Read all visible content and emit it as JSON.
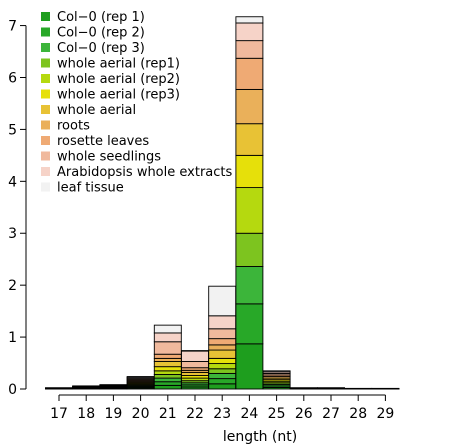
{
  "chart_data": {
    "type": "bar",
    "stacked": true,
    "title": "",
    "xlabel": "length (nt)",
    "ylabel": "",
    "ylim": [
      0,
      7.3
    ],
    "yticks": [
      0,
      1,
      2,
      3,
      4,
      5,
      6,
      7
    ],
    "categories": [
      "17",
      "18",
      "19",
      "20",
      "21",
      "22",
      "23",
      "24",
      "25",
      "26",
      "27",
      "28",
      "29"
    ],
    "grid": false,
    "legend": "top-left",
    "series": [
      {
        "name": "Col−0 (rep 1)",
        "color": "#1e9e1e",
        "values": [
          0.002,
          0.005,
          0.007,
          0.02,
          0.07,
          0.04,
          0.1,
          0.87,
          0.03,
          0.002,
          0.002,
          0.001,
          0.001
        ]
      },
      {
        "name": "Col−0 (rep 2)",
        "color": "#28a828",
        "values": [
          0.002,
          0.005,
          0.007,
          0.02,
          0.07,
          0.04,
          0.1,
          0.77,
          0.03,
          0.002,
          0.002,
          0.001,
          0.001
        ]
      },
      {
        "name": "Col−0 (rep 3)",
        "color": "#3cb53a",
        "values": [
          0.002,
          0.005,
          0.007,
          0.02,
          0.07,
          0.04,
          0.1,
          0.72,
          0.03,
          0.002,
          0.002,
          0.001,
          0.001
        ]
      },
      {
        "name": "whole aerial (rep1)",
        "color": "#7dc41f",
        "values": [
          0.002,
          0.005,
          0.007,
          0.02,
          0.07,
          0.04,
          0.09,
          0.64,
          0.03,
          0.002,
          0.002,
          0.001,
          0.001
        ]
      },
      {
        "name": "whole aerial (rep2)",
        "color": "#b5d90f",
        "values": [
          0.002,
          0.005,
          0.007,
          0.02,
          0.07,
          0.05,
          0.1,
          0.88,
          0.03,
          0.002,
          0.002,
          0.001,
          0.001
        ]
      },
      {
        "name": "whole aerial (rep3)",
        "color": "#e6e00a",
        "values": [
          0.002,
          0.005,
          0.007,
          0.02,
          0.08,
          0.05,
          0.1,
          0.62,
          0.03,
          0.002,
          0.002,
          0.001,
          0.001
        ]
      },
      {
        "name": "whole aerial",
        "color": "#e8c235",
        "values": [
          0.002,
          0.005,
          0.007,
          0.02,
          0.1,
          0.06,
          0.16,
          0.61,
          0.03,
          0.002,
          0.002,
          0.001,
          0.001
        ]
      },
      {
        "name": "roots",
        "color": "#eab05a",
        "values": [
          0.002,
          0.005,
          0.007,
          0.02,
          0.06,
          0.04,
          0.1,
          0.66,
          0.03,
          0.002,
          0.002,
          0.001,
          0.001
        ]
      },
      {
        "name": "rosette leaves",
        "color": "#efaa74",
        "values": [
          0.002,
          0.005,
          0.007,
          0.02,
          0.08,
          0.05,
          0.12,
          0.6,
          0.03,
          0.002,
          0.002,
          0.001,
          0.001
        ]
      },
      {
        "name": "whole seedlings",
        "color": "#f0b99d",
        "values": [
          0.002,
          0.005,
          0.007,
          0.02,
          0.24,
          0.12,
          0.19,
          0.34,
          0.03,
          0.002,
          0.002,
          0.001,
          0.001
        ]
      },
      {
        "name": "Arabidopsis whole extracts",
        "color": "#f6d3c8",
        "values": [
          0.002,
          0.005,
          0.007,
          0.02,
          0.17,
          0.2,
          0.25,
          0.34,
          0.03,
          0.002,
          0.002,
          0.001,
          0.001
        ]
      },
      {
        "name": "leaf tissue",
        "color": "#f2f2f2",
        "values": [
          0.002,
          0.005,
          0.007,
          0.02,
          0.15,
          0.01,
          0.57,
          0.12,
          0.02,
          0.002,
          0.002,
          0.001,
          0.001
        ]
      }
    ]
  }
}
